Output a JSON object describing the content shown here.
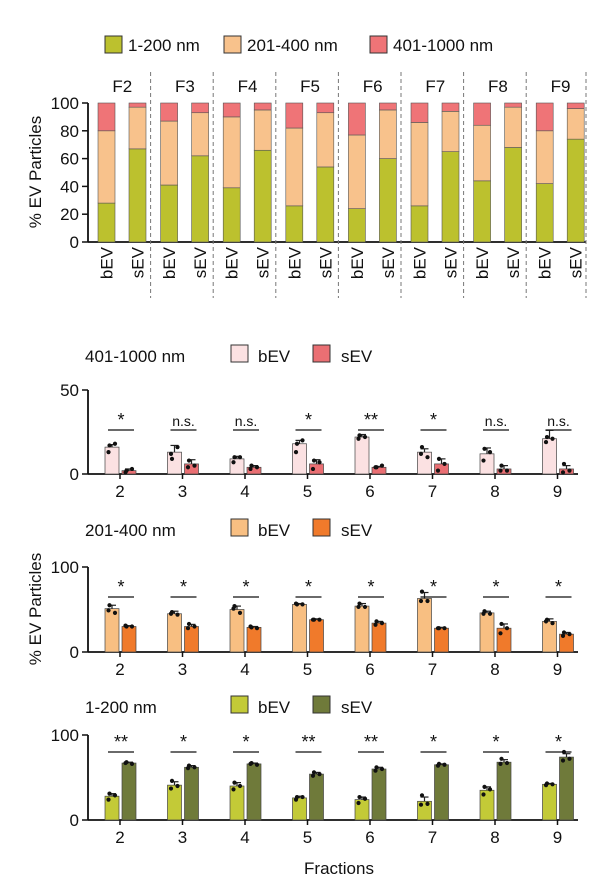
{
  "colors": {
    "small": "#bcc12e",
    "medium": "#f8c28c",
    "large": "#ef7477",
    "large_bev": "#fbe1e2",
    "large_sev": "#ea6f73",
    "medium_bev": "#f8bf82",
    "medium_sev": "#f07a2b",
    "small_bev": "#c3ca37",
    "small_sev": "#6f7a3a"
  },
  "chart_data": [
    {
      "type": "bar",
      "stacked": true,
      "legend": [
        "1-200 nm",
        "201-400 nm",
        "401-1000 nm"
      ],
      "ylabel": "% EV Particles",
      "ylim": [
        0,
        100
      ],
      "yticks": [
        "0",
        "20",
        "40",
        "60",
        "80",
        "100"
      ],
      "groups": [
        "F2",
        "F3",
        "F4",
        "F5",
        "F6",
        "F7",
        "F8",
        "F9"
      ],
      "categories": [
        "bEV",
        "sEV"
      ],
      "series": [
        {
          "name": "1-200 nm",
          "bEV": [
            28,
            41,
            39,
            26,
            24,
            26,
            44,
            42
          ],
          "sEV": [
            67,
            62,
            66,
            54,
            60,
            65,
            68,
            74
          ]
        },
        {
          "name": "201-400 nm",
          "bEV": [
            52,
            46,
            51,
            56,
            53,
            60,
            40,
            38
          ],
          "sEV": [
            30,
            31,
            29,
            39,
            35,
            29,
            29,
            22
          ]
        },
        {
          "name": "401-1000 nm",
          "bEV": [
            20,
            13,
            10,
            18,
            23,
            14,
            16,
            20
          ],
          "sEV": [
            3,
            7,
            5,
            7,
            5,
            6,
            3,
            4
          ]
        }
      ]
    },
    {
      "type": "bar",
      "size_label": "401-1000 nm",
      "legend": [
        "bEV",
        "sEV"
      ],
      "ylim": [
        0,
        50
      ],
      "yticks": [
        "0",
        "50"
      ],
      "categories": [
        "2",
        "3",
        "4",
        "5",
        "6",
        "7",
        "8",
        "9"
      ],
      "bEV": {
        "values": [
          16,
          13,
          9,
          18,
          22,
          13,
          12,
          21
        ],
        "errors": [
          1.5,
          4,
          1.5,
          2,
          1.5,
          2,
          3.5,
          5
        ],
        "points": [
          [
            17,
            13,
            18
          ],
          [
            9,
            12,
            16
          ],
          [
            10,
            7,
            10
          ],
          [
            18,
            13,
            20
          ],
          [
            23,
            21,
            22
          ],
          [
            16,
            12,
            10
          ],
          [
            15,
            8,
            13
          ],
          [
            22,
            19,
            21
          ]
        ]
      },
      "sEV": {
        "values": [
          2,
          6,
          4,
          6,
          4,
          6,
          3,
          3
        ],
        "errors": [
          1,
          2.5,
          1,
          2.5,
          0.5,
          3,
          2,
          2
        ],
        "points": [
          [
            2,
            1,
            3
          ],
          [
            8,
            4,
            5
          ],
          [
            5,
            3,
            4
          ],
          [
            8,
            3,
            7
          ],
          [
            4,
            4,
            5
          ],
          [
            9,
            2,
            6
          ],
          [
            5,
            2,
            2
          ],
          [
            6,
            1,
            2
          ]
        ]
      },
      "significance": [
        "*",
        "n.s.",
        "n.s.",
        "*",
        "**",
        "*",
        "n.s.",
        "n.s."
      ]
    },
    {
      "type": "bar",
      "size_label": "201-400 nm",
      "legend": [
        "bEV",
        "sEV"
      ],
      "ylabel": "% EV Particles",
      "ylim": [
        0,
        100
      ],
      "yticks": [
        "0",
        "100"
      ],
      "categories": [
        "2",
        "3",
        "4",
        "5",
        "6",
        "7",
        "8",
        "9"
      ],
      "bEV": {
        "values": [
          51,
          45,
          50,
          56,
          54,
          63,
          46,
          36
        ],
        "errors": [
          4,
          3,
          4,
          1,
          3,
          7,
          2,
          3
        ],
        "points": [
          [
            55,
            49,
            46
          ],
          [
            47,
            45,
            44
          ],
          [
            54,
            51,
            46
          ],
          [
            56,
            57,
            56
          ],
          [
            57,
            53,
            53
          ],
          [
            71,
            60,
            60
          ],
          [
            48,
            45,
            45
          ],
          [
            38,
            36,
            34
          ]
        ]
      },
      "sEV": {
        "values": [
          30,
          30,
          29,
          38,
          34,
          28,
          28,
          21
        ],
        "errors": [
          1,
          2.5,
          1,
          1,
          2,
          1,
          5,
          2
        ],
        "points": [
          [
            30,
            31,
            30
          ],
          [
            33,
            28,
            30
          ],
          [
            29,
            30,
            28
          ],
          [
            38,
            38,
            38
          ],
          [
            36,
            32,
            34
          ],
          [
            28,
            28,
            28
          ],
          [
            33,
            22,
            28
          ],
          [
            23,
            19,
            21
          ]
        ]
      },
      "significance": [
        "*",
        "*",
        "*",
        "*",
        "*",
        "*",
        "*",
        "*"
      ]
    },
    {
      "type": "bar",
      "size_label": "1-200 nm",
      "legend": [
        "bEV",
        "sEV"
      ],
      "xlabel": "Fractions",
      "ylim": [
        0,
        100
      ],
      "yticks": [
        "0",
        "100"
      ],
      "categories": [
        "2",
        "3",
        "4",
        "5",
        "6",
        "7",
        "8",
        "9"
      ],
      "bEV": {
        "values": [
          28,
          41,
          40,
          26,
          24,
          22,
          35,
          42
        ],
        "errors": [
          3,
          4,
          4,
          2,
          3,
          5,
          4,
          1
        ],
        "points": [
          [
            31,
            24,
            29
          ],
          [
            46,
            37,
            40
          ],
          [
            44,
            36,
            40
          ],
          [
            27,
            24,
            27
          ],
          [
            27,
            20,
            25
          ],
          [
            29,
            18,
            19
          ],
          [
            39,
            30,
            36
          ],
          [
            43,
            41,
            42
          ]
        ]
      },
      "sEV": {
        "values": [
          67,
          62,
          66,
          54,
          60,
          65,
          68,
          74
        ],
        "errors": [
          1,
          2,
          1,
          2,
          2,
          1,
          3,
          4
        ],
        "points": [
          [
            68,
            67,
            66
          ],
          [
            64,
            61,
            62
          ],
          [
            67,
            66,
            65
          ],
          [
            56,
            52,
            54
          ],
          [
            62,
            58,
            60
          ],
          [
            66,
            64,
            65
          ],
          [
            72,
            66,
            67
          ],
          [
            80,
            70,
            72
          ]
        ]
      },
      "significance": [
        "**",
        "*",
        "*",
        "**",
        "**",
        "*",
        "*",
        "*"
      ]
    }
  ]
}
